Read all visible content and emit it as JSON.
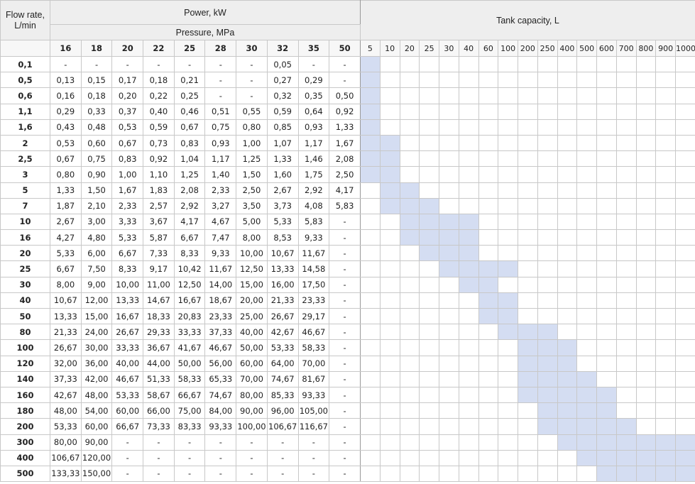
{
  "header": {
    "flow": "Flow rate, L/min",
    "power": "Power, kW",
    "pressure": "Pressure, MPa",
    "tank": "Tank capacity, L"
  },
  "pressures": [
    16,
    18,
    20,
    22,
    25,
    28,
    30,
    32,
    35,
    50
  ],
  "tanks": [
    5,
    10,
    20,
    25,
    30,
    40,
    60,
    100,
    200,
    250,
    400,
    500,
    600,
    700,
    800,
    900,
    1000
  ],
  "rows": [
    {
      "flow": "0,1",
      "power": [
        "-",
        "-",
        "-",
        "-",
        "-",
        "-",
        "-",
        "0,05",
        "-",
        "-"
      ],
      "tanks": [
        5
      ]
    },
    {
      "flow": "0,5",
      "power": [
        "0,13",
        "0,15",
        "0,17",
        "0,18",
        "0,21",
        "-",
        "-",
        "0,27",
        "0,29",
        "-"
      ],
      "tanks": [
        5
      ]
    },
    {
      "flow": "0,6",
      "power": [
        "0,16",
        "0,18",
        "0,20",
        "0,22",
        "0,25",
        "-",
        "-",
        "0,32",
        "0,35",
        "0,50"
      ],
      "tanks": [
        5
      ]
    },
    {
      "flow": "1,1",
      "power": [
        "0,29",
        "0,33",
        "0,37",
        "0,40",
        "0,46",
        "0,51",
        "0,55",
        "0,59",
        "0,64",
        "0,92"
      ],
      "tanks": [
        5
      ]
    },
    {
      "flow": "1,6",
      "power": [
        "0,43",
        "0,48",
        "0,53",
        "0,59",
        "0,67",
        "0,75",
        "0,80",
        "0,85",
        "0,93",
        "1,33"
      ],
      "tanks": [
        5
      ]
    },
    {
      "flow": "2",
      "power": [
        "0,53",
        "0,60",
        "0,67",
        "0,73",
        "0,83",
        "0,93",
        "1,00",
        "1,07",
        "1,17",
        "1,67"
      ],
      "tanks": [
        5,
        10
      ]
    },
    {
      "flow": "2,5",
      "power": [
        "0,67",
        "0,75",
        "0,83",
        "0,92",
        "1,04",
        "1,17",
        "1,25",
        "1,33",
        "1,46",
        "2,08"
      ],
      "tanks": [
        5,
        10
      ]
    },
    {
      "flow": "3",
      "power": [
        "0,80",
        "0,90",
        "1,00",
        "1,10",
        "1,25",
        "1,40",
        "1,50",
        "1,60",
        "1,75",
        "2,50"
      ],
      "tanks": [
        5,
        10
      ]
    },
    {
      "flow": "5",
      "power": [
        "1,33",
        "1,50",
        "1,67",
        "1,83",
        "2,08",
        "2,33",
        "2,50",
        "2,67",
        "2,92",
        "4,17"
      ],
      "tanks": [
        10,
        20
      ]
    },
    {
      "flow": "7",
      "power": [
        "1,87",
        "2,10",
        "2,33",
        "2,57",
        "2,92",
        "3,27",
        "3,50",
        "3,73",
        "4,08",
        "5,83"
      ],
      "tanks": [
        10,
        20,
        25
      ]
    },
    {
      "flow": "10",
      "power": [
        "2,67",
        "3,00",
        "3,33",
        "3,67",
        "4,17",
        "4,67",
        "5,00",
        "5,33",
        "5,83",
        "-"
      ],
      "tanks": [
        20,
        25,
        30,
        40
      ]
    },
    {
      "flow": "16",
      "power": [
        "4,27",
        "4,80",
        "5,33",
        "5,87",
        "6,67",
        "7,47",
        "8,00",
        "8,53",
        "9,33",
        "-"
      ],
      "tanks": [
        20,
        25,
        30,
        40
      ]
    },
    {
      "flow": "20",
      "power": [
        "5,33",
        "6,00",
        "6,67",
        "7,33",
        "8,33",
        "9,33",
        "10,00",
        "10,67",
        "11,67",
        "-"
      ],
      "tanks": [
        25,
        30,
        40
      ]
    },
    {
      "flow": "25",
      "power": [
        "6,67",
        "7,50",
        "8,33",
        "9,17",
        "10,42",
        "11,67",
        "12,50",
        "13,33",
        "14,58",
        "-"
      ],
      "tanks": [
        30,
        40,
        60,
        100
      ]
    },
    {
      "flow": "30",
      "power": [
        "8,00",
        "9,00",
        "10,00",
        "11,00",
        "12,50",
        "14,00",
        "15,00",
        "16,00",
        "17,50",
        "-"
      ],
      "tanks": [
        40,
        60
      ]
    },
    {
      "flow": "40",
      "power": [
        "10,67",
        "12,00",
        "13,33",
        "14,67",
        "16,67",
        "18,67",
        "20,00",
        "21,33",
        "23,33",
        "-"
      ],
      "tanks": [
        60,
        100
      ]
    },
    {
      "flow": "50",
      "power": [
        "13,33",
        "15,00",
        "16,67",
        "18,33",
        "20,83",
        "23,33",
        "25,00",
        "26,67",
        "29,17",
        "-"
      ],
      "tanks": [
        60,
        100
      ]
    },
    {
      "flow": "80",
      "power": [
        "21,33",
        "24,00",
        "26,67",
        "29,33",
        "33,33",
        "37,33",
        "40,00",
        "42,67",
        "46,67",
        "-"
      ],
      "tanks": [
        100,
        200,
        250
      ]
    },
    {
      "flow": "100",
      "power": [
        "26,67",
        "30,00",
        "33,33",
        "36,67",
        "41,67",
        "46,67",
        "50,00",
        "53,33",
        "58,33",
        "-"
      ],
      "tanks": [
        200,
        250,
        400
      ]
    },
    {
      "flow": "120",
      "power": [
        "32,00",
        "36,00",
        "40,00",
        "44,00",
        "50,00",
        "56,00",
        "60,00",
        "64,00",
        "70,00",
        "-"
      ],
      "tanks": [
        200,
        250,
        400
      ]
    },
    {
      "flow": "140",
      "power": [
        "37,33",
        "42,00",
        "46,67",
        "51,33",
        "58,33",
        "65,33",
        "70,00",
        "74,67",
        "81,67",
        "-"
      ],
      "tanks": [
        200,
        250,
        400,
        500
      ]
    },
    {
      "flow": "160",
      "power": [
        "42,67",
        "48,00",
        "53,33",
        "58,67",
        "66,67",
        "74,67",
        "80,00",
        "85,33",
        "93,33",
        "-"
      ],
      "tanks": [
        200,
        250,
        400,
        500,
        600
      ]
    },
    {
      "flow": "180",
      "power": [
        "48,00",
        "54,00",
        "60,00",
        "66,00",
        "75,00",
        "84,00",
        "90,00",
        "96,00",
        "105,00",
        "-"
      ],
      "tanks": [
        250,
        400,
        500,
        600
      ]
    },
    {
      "flow": "200",
      "power": [
        "53,33",
        "60,00",
        "66,67",
        "73,33",
        "83,33",
        "93,33",
        "100,00",
        "106,67",
        "116,67",
        "-"
      ],
      "tanks": [
        250,
        400,
        500,
        600,
        700
      ]
    },
    {
      "flow": "300",
      "power": [
        "80,00",
        "90,00",
        "-",
        "-",
        "-",
        "-",
        "-",
        "-",
        "-",
        "-"
      ],
      "tanks": [
        400,
        500,
        600,
        700,
        800,
        900,
        1000
      ]
    },
    {
      "flow": "400",
      "power": [
        "106,67",
        "120,00",
        "-",
        "-",
        "-",
        "-",
        "-",
        "-",
        "-",
        "-"
      ],
      "tanks": [
        500,
        600,
        700,
        800,
        900,
        1000
      ]
    },
    {
      "flow": "500",
      "power": [
        "133,33",
        "150,00",
        "-",
        "-",
        "-",
        "-",
        "-",
        "-",
        "-",
        "-"
      ],
      "tanks": [
        600,
        700,
        800,
        900,
        1000
      ]
    }
  ]
}
